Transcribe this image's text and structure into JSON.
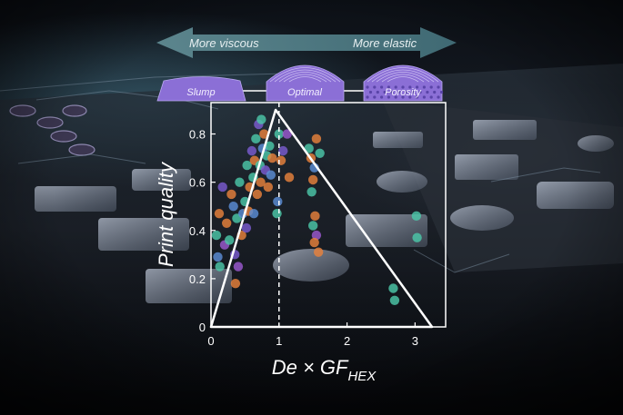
{
  "arrow": {
    "left_label": "More viscous",
    "right_label": "More elastic",
    "color": "#4e7a82"
  },
  "shapes": [
    {
      "label": "Slump",
      "kind": "slump"
    },
    {
      "label": "Optimal",
      "kind": "optimal"
    },
    {
      "label": "Porosity",
      "kind": "porosity"
    }
  ],
  "colors": {
    "shape_fill": "#8b6fd6",
    "axis": "#ffffff"
  },
  "chart_data": {
    "type": "scatter",
    "xlabel": "De × GF",
    "xlabel_sub": "HEX",
    "ylabel": "Print quality",
    "xlim": [
      0,
      3.45
    ],
    "ylim": [
      0,
      0.93
    ],
    "xticks": [
      "0",
      "1",
      "2",
      "3"
    ],
    "xtick_values": [
      0,
      1,
      2,
      3
    ],
    "yticks": [
      "0",
      "0.2",
      "0.4",
      "0.6",
      "0.8"
    ],
    "ytick_values": [
      0,
      0.2,
      0.4,
      0.6,
      0.8
    ],
    "reference_line_x": 1,
    "triangle": [
      [
        0,
        0
      ],
      [
        0.95,
        0.9
      ],
      [
        3.25,
        0
      ]
    ],
    "points": [
      {
        "x": 0.08,
        "y": 0.38,
        "c": "#4cc7a8"
      },
      {
        "x": 0.1,
        "y": 0.29,
        "c": "#5b8ed6"
      },
      {
        "x": 0.13,
        "y": 0.25,
        "c": "#4cc7a8"
      },
      {
        "x": 0.12,
        "y": 0.47,
        "c": "#e8813c"
      },
      {
        "x": 0.17,
        "y": 0.58,
        "c": "#7a5bd0"
      },
      {
        "x": 0.2,
        "y": 0.34,
        "c": "#9b59d0"
      },
      {
        "x": 0.23,
        "y": 0.43,
        "c": "#e8813c"
      },
      {
        "x": 0.27,
        "y": 0.36,
        "c": "#4cc7a8"
      },
      {
        "x": 0.3,
        "y": 0.55,
        "c": "#e8813c"
      },
      {
        "x": 0.33,
        "y": 0.5,
        "c": "#5b8ed6"
      },
      {
        "x": 0.35,
        "y": 0.3,
        "c": "#7a5bd0"
      },
      {
        "x": 0.38,
        "y": 0.45,
        "c": "#4cc7a8"
      },
      {
        "x": 0.36,
        "y": 0.18,
        "c": "#e8813c"
      },
      {
        "x": 0.4,
        "y": 0.25,
        "c": "#9b59d0"
      },
      {
        "x": 0.42,
        "y": 0.6,
        "c": "#4cc7a8"
      },
      {
        "x": 0.45,
        "y": 0.38,
        "c": "#e8813c"
      },
      {
        "x": 0.47,
        "y": 0.47,
        "c": "#5b8ed6"
      },
      {
        "x": 0.5,
        "y": 0.52,
        "c": "#4cc7a8"
      },
      {
        "x": 0.52,
        "y": 0.41,
        "c": "#7a5bd0"
      },
      {
        "x": 0.55,
        "y": 0.48,
        "c": "#e8813c"
      },
      {
        "x": 0.53,
        "y": 0.67,
        "c": "#4cc7a8"
      },
      {
        "x": 0.57,
        "y": 0.58,
        "c": "#e8813c"
      },
      {
        "x": 0.6,
        "y": 0.73,
        "c": "#7a5bd0"
      },
      {
        "x": 0.62,
        "y": 0.62,
        "c": "#4cc7a8"
      },
      {
        "x": 0.63,
        "y": 0.47,
        "c": "#5b8ed6"
      },
      {
        "x": 0.64,
        "y": 0.69,
        "c": "#e8813c"
      },
      {
        "x": 0.66,
        "y": 0.78,
        "c": "#4cc7a8"
      },
      {
        "x": 0.68,
        "y": 0.55,
        "c": "#e8813c"
      },
      {
        "x": 0.7,
        "y": 0.84,
        "c": "#7a5bd0"
      },
      {
        "x": 0.72,
        "y": 0.67,
        "c": "#4cc7a8"
      },
      {
        "x": 0.73,
        "y": 0.6,
        "c": "#e8813c"
      },
      {
        "x": 0.74,
        "y": 0.86,
        "c": "#4cc7a8"
      },
      {
        "x": 0.76,
        "y": 0.74,
        "c": "#5b8ed6"
      },
      {
        "x": 0.78,
        "y": 0.8,
        "c": "#e8813c"
      },
      {
        "x": 0.8,
        "y": 0.65,
        "c": "#7a5bd0"
      },
      {
        "x": 0.82,
        "y": 0.71,
        "c": "#4cc7a8"
      },
      {
        "x": 0.84,
        "y": 0.58,
        "c": "#e8813c"
      },
      {
        "x": 0.86,
        "y": 0.75,
        "c": "#4cc7a8"
      },
      {
        "x": 0.88,
        "y": 0.63,
        "c": "#5b8ed6"
      },
      {
        "x": 0.9,
        "y": 0.7,
        "c": "#e8813c"
      },
      {
        "x": 0.97,
        "y": 0.47,
        "c": "#4cc7a8"
      },
      {
        "x": 0.98,
        "y": 0.52,
        "c": "#5b8ed6"
      },
      {
        "x": 1.0,
        "y": 0.8,
        "c": "#4cc7a8"
      },
      {
        "x": 1.03,
        "y": 0.69,
        "c": "#e8813c"
      },
      {
        "x": 1.06,
        "y": 0.73,
        "c": "#7a5bd0"
      },
      {
        "x": 1.12,
        "y": 0.8,
        "c": "#9b59d0"
      },
      {
        "x": 1.15,
        "y": 0.62,
        "c": "#e8813c"
      },
      {
        "x": 1.44,
        "y": 0.74,
        "c": "#4cc7a8"
      },
      {
        "x": 1.47,
        "y": 0.7,
        "c": "#e8813c"
      },
      {
        "x": 1.52,
        "y": 0.66,
        "c": "#5b8ed6"
      },
      {
        "x": 1.5,
        "y": 0.61,
        "c": "#e8813c"
      },
      {
        "x": 1.55,
        "y": 0.78,
        "c": "#e8813c"
      },
      {
        "x": 1.48,
        "y": 0.56,
        "c": "#4cc7a8"
      },
      {
        "x": 1.53,
        "y": 0.46,
        "c": "#e8813c"
      },
      {
        "x": 1.5,
        "y": 0.42,
        "c": "#4cc7a8"
      },
      {
        "x": 1.55,
        "y": 0.38,
        "c": "#9b59d0"
      },
      {
        "x": 1.52,
        "y": 0.35,
        "c": "#e8813c"
      },
      {
        "x": 1.58,
        "y": 0.31,
        "c": "#e8813c"
      },
      {
        "x": 1.6,
        "y": 0.72,
        "c": "#4cc7a8"
      },
      {
        "x": 2.68,
        "y": 0.16,
        "c": "#4cc7a8"
      },
      {
        "x": 2.7,
        "y": 0.11,
        "c": "#4cc7a8"
      },
      {
        "x": 3.02,
        "y": 0.46,
        "c": "#4cc7a8"
      },
      {
        "x": 3.03,
        "y": 0.37,
        "c": "#4cc7a8"
      }
    ]
  }
}
